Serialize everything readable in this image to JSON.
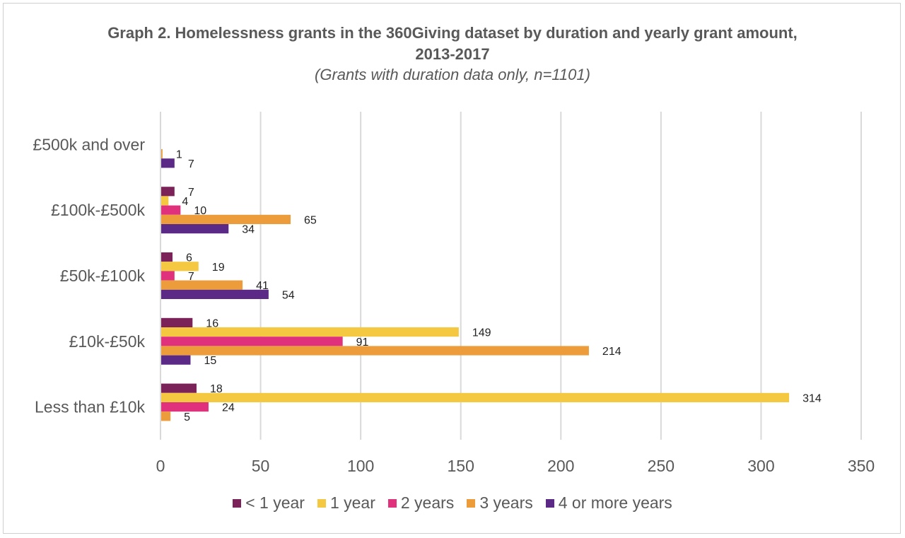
{
  "chart_data": {
    "type": "bar",
    "orientation": "horizontal",
    "title": "Graph 2. Homelessness grants in the 360Giving dataset by duration and yearly grant amount, 2013-2017",
    "subtitle": "(Grants with duration data only, n=1101)",
    "categories": [
      "£500k and over",
      "£100k-£500k",
      "£50k-£100k",
      "£10k-£50k",
      "Less than £10k"
    ],
    "series": [
      {
        "name": "< 1 year",
        "color": "#7b2359",
        "values": [
          null,
          7,
          6,
          16,
          18
        ]
      },
      {
        "name": "1 year",
        "color": "#f5c842",
        "values": [
          null,
          4,
          19,
          149,
          314
        ]
      },
      {
        "name": "2 years",
        "color": "#e0317c",
        "values": [
          null,
          10,
          7,
          91,
          24
        ]
      },
      {
        "name": "3 years",
        "color": "#ec9c3b",
        "values": [
          1,
          65,
          41,
          214,
          5
        ]
      },
      {
        "name": "4 or more years",
        "color": "#5b2a86",
        "values": [
          7,
          34,
          54,
          15,
          null
        ]
      }
    ],
    "xlim": [
      0,
      350
    ],
    "xticks": [
      0,
      50,
      100,
      150,
      200,
      250,
      300,
      350
    ],
    "xtick_labels": [
      "0",
      "50",
      "100",
      "150",
      "200",
      "250",
      "300",
      "350"
    ],
    "grid": "vertical",
    "legend_position": "bottom"
  }
}
